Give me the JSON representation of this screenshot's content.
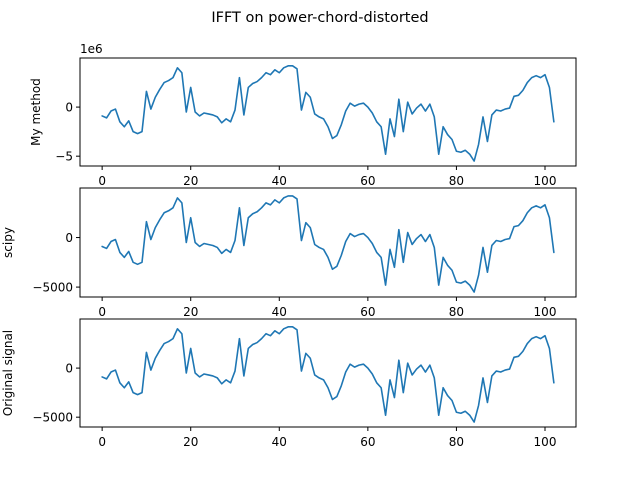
{
  "figure": {
    "title": "IFFT on power-chord-distorted",
    "line_color": "#1f77b4"
  },
  "chart_data": [
    {
      "type": "line",
      "ylabel": "My method",
      "offset_text": "1e6",
      "xlim": [
        -5,
        107
      ],
      "ylim": [
        -6,
        5
      ],
      "xticks": [
        0,
        20,
        40,
        60,
        80,
        100
      ],
      "xtick_labels": [
        "0",
        "20",
        "40",
        "60",
        "80",
        "100"
      ],
      "yticks": [
        -5,
        0
      ],
      "ytick_labels": [
        "−5",
        "0"
      ],
      "grid": false,
      "series": [
        {
          "x": [
            0,
            1,
            2,
            3,
            4,
            5,
            6,
            7,
            8,
            9,
            10,
            11,
            12,
            13,
            14,
            15,
            16,
            17,
            18,
            19,
            20,
            21,
            22,
            23,
            24,
            25,
            26,
            27,
            28,
            29,
            30,
            31,
            32,
            33,
            34,
            35,
            36,
            37,
            38,
            39,
            40,
            41,
            42,
            43,
            44,
            45,
            46,
            47,
            48,
            49,
            50,
            51,
            52,
            53,
            54,
            55,
            56,
            57,
            58,
            59,
            60,
            61,
            62,
            63,
            64,
            65,
            66,
            67,
            68,
            69,
            70,
            71,
            72,
            73,
            74,
            75,
            76,
            77,
            78,
            79,
            80,
            81,
            82,
            83,
            84,
            85,
            86,
            87,
            88,
            89,
            90,
            91,
            92,
            93,
            94,
            95,
            96,
            97,
            98,
            99,
            100,
            101,
            102
          ],
          "y": [
            -0.9,
            -1.1,
            -0.4,
            -0.2,
            -1.5,
            -2.0,
            -1.4,
            -2.5,
            -2.7,
            -2.5,
            1.6,
            -0.2,
            1.0,
            1.8,
            2.5,
            2.7,
            3.0,
            4.0,
            3.5,
            -0.5,
            2.0,
            -0.5,
            -0.9,
            -0.6,
            -0.7,
            -0.8,
            -1.0,
            -1.6,
            -1.2,
            -1.5,
            -0.3,
            3.0,
            -0.8,
            2.0,
            2.4,
            2.6,
            3.0,
            3.5,
            3.3,
            3.8,
            3.5,
            4.0,
            4.2,
            4.2,
            3.9,
            -0.3,
            1.5,
            1.0,
            -0.7,
            -1.0,
            -1.2,
            -2.0,
            -3.2,
            -2.9,
            -1.8,
            -0.4,
            0.4,
            0.1,
            0.3,
            0.4,
            0.0,
            -0.6,
            -1.5,
            -2.0,
            -4.8,
            -1.2,
            -3.0,
            0.8,
            -2.5,
            0.5,
            -0.7,
            -0.1,
            0.3,
            -0.4,
            0.3,
            -1.0,
            -4.8,
            -2.0,
            -2.8,
            -3.3,
            -4.5,
            -4.6,
            -4.4,
            -4.8,
            -5.5,
            -3.8,
            -1.0,
            -3.5,
            -0.8,
            -0.3,
            -0.4,
            -0.2,
            -0.1,
            1.1,
            1.2,
            1.7,
            2.5,
            3.0,
            3.2,
            3.0,
            3.3,
            2.0,
            -1.5
          ]
        }
      ]
    },
    {
      "type": "line",
      "ylabel": "scipy",
      "offset_text": "",
      "xlim": [
        -5,
        107
      ],
      "ylim": [
        -6000,
        5000
      ],
      "xticks": [
        0,
        20,
        40,
        60,
        80,
        100
      ],
      "xtick_labels": [
        "0",
        "20",
        "40",
        "60",
        "80",
        "100"
      ],
      "yticks": [
        -5000,
        0
      ],
      "ytick_labels": [
        "−5000",
        "0"
      ],
      "grid": false,
      "series": [
        {
          "x": [
            0,
            1,
            2,
            3,
            4,
            5,
            6,
            7,
            8,
            9,
            10,
            11,
            12,
            13,
            14,
            15,
            16,
            17,
            18,
            19,
            20,
            21,
            22,
            23,
            24,
            25,
            26,
            27,
            28,
            29,
            30,
            31,
            32,
            33,
            34,
            35,
            36,
            37,
            38,
            39,
            40,
            41,
            42,
            43,
            44,
            45,
            46,
            47,
            48,
            49,
            50,
            51,
            52,
            53,
            54,
            55,
            56,
            57,
            58,
            59,
            60,
            61,
            62,
            63,
            64,
            65,
            66,
            67,
            68,
            69,
            70,
            71,
            72,
            73,
            74,
            75,
            76,
            77,
            78,
            79,
            80,
            81,
            82,
            83,
            84,
            85,
            86,
            87,
            88,
            89,
            90,
            91,
            92,
            93,
            94,
            95,
            96,
            97,
            98,
            99,
            100,
            101,
            102
          ],
          "y": [
            -900,
            -1100,
            -400,
            -200,
            -1500,
            -2000,
            -1400,
            -2500,
            -2700,
            -2500,
            1600,
            -200,
            1000,
            1800,
            2500,
            2700,
            3000,
            4000,
            3500,
            -500,
            2000,
            -500,
            -900,
            -600,
            -700,
            -800,
            -1000,
            -1600,
            -1200,
            -1500,
            -300,
            3000,
            -800,
            2000,
            2400,
            2600,
            3000,
            3500,
            3300,
            3800,
            3500,
            4000,
            4200,
            4200,
            3900,
            -300,
            1500,
            1000,
            -700,
            -1000,
            -1200,
            -2000,
            -3200,
            -2900,
            -1800,
            -400,
            400,
            100,
            300,
            400,
            0,
            -600,
            -1500,
            -2000,
            -4800,
            -1200,
            -3000,
            800,
            -2500,
            500,
            -700,
            -100,
            300,
            -400,
            300,
            -1000,
            -4800,
            -2000,
            -2800,
            -3300,
            -4500,
            -4600,
            -4400,
            -4800,
            -5500,
            -3800,
            -1000,
            -3500,
            -800,
            -300,
            -400,
            -200,
            -100,
            1100,
            1200,
            1700,
            2500,
            3000,
            3200,
            3000,
            3300,
            2000,
            -1500
          ]
        }
      ]
    },
    {
      "type": "line",
      "ylabel": "Original signal",
      "offset_text": "",
      "xlim": [
        -5,
        107
      ],
      "ylim": [
        -6000,
        5000
      ],
      "xticks": [
        0,
        20,
        40,
        60,
        80,
        100
      ],
      "xtick_labels": [
        "0",
        "20",
        "40",
        "60",
        "80",
        "100"
      ],
      "yticks": [
        -5000,
        0
      ],
      "ytick_labels": [
        "−5000",
        "0"
      ],
      "grid": false,
      "series": [
        {
          "x": [
            0,
            1,
            2,
            3,
            4,
            5,
            6,
            7,
            8,
            9,
            10,
            11,
            12,
            13,
            14,
            15,
            16,
            17,
            18,
            19,
            20,
            21,
            22,
            23,
            24,
            25,
            26,
            27,
            28,
            29,
            30,
            31,
            32,
            33,
            34,
            35,
            36,
            37,
            38,
            39,
            40,
            41,
            42,
            43,
            44,
            45,
            46,
            47,
            48,
            49,
            50,
            51,
            52,
            53,
            54,
            55,
            56,
            57,
            58,
            59,
            60,
            61,
            62,
            63,
            64,
            65,
            66,
            67,
            68,
            69,
            70,
            71,
            72,
            73,
            74,
            75,
            76,
            77,
            78,
            79,
            80,
            81,
            82,
            83,
            84,
            85,
            86,
            87,
            88,
            89,
            90,
            91,
            92,
            93,
            94,
            95,
            96,
            97,
            98,
            99,
            100,
            101,
            102
          ],
          "y": [
            -900,
            -1100,
            -400,
            -200,
            -1500,
            -2000,
            -1400,
            -2500,
            -2700,
            -2500,
            1600,
            -200,
            1000,
            1800,
            2500,
            2700,
            3000,
            4000,
            3500,
            -500,
            2000,
            -500,
            -900,
            -600,
            -700,
            -800,
            -1000,
            -1600,
            -1200,
            -1500,
            -300,
            3000,
            -800,
            2000,
            2400,
            2600,
            3000,
            3500,
            3300,
            3800,
            3500,
            4000,
            4200,
            4200,
            3900,
            -300,
            1500,
            1000,
            -700,
            -1000,
            -1200,
            -2000,
            -3200,
            -2900,
            -1800,
            -400,
            400,
            100,
            300,
            400,
            0,
            -600,
            -1500,
            -2000,
            -4800,
            -1200,
            -3000,
            800,
            -2500,
            500,
            -700,
            -100,
            300,
            -400,
            300,
            -1000,
            -4800,
            -2000,
            -2800,
            -3300,
            -4500,
            -4600,
            -4400,
            -4800,
            -5500,
            -3800,
            -1000,
            -3500,
            -800,
            -300,
            -400,
            -200,
            -100,
            1100,
            1200,
            1700,
            2500,
            3000,
            3200,
            3000,
            3300,
            2000,
            -1500
          ]
        }
      ]
    }
  ]
}
